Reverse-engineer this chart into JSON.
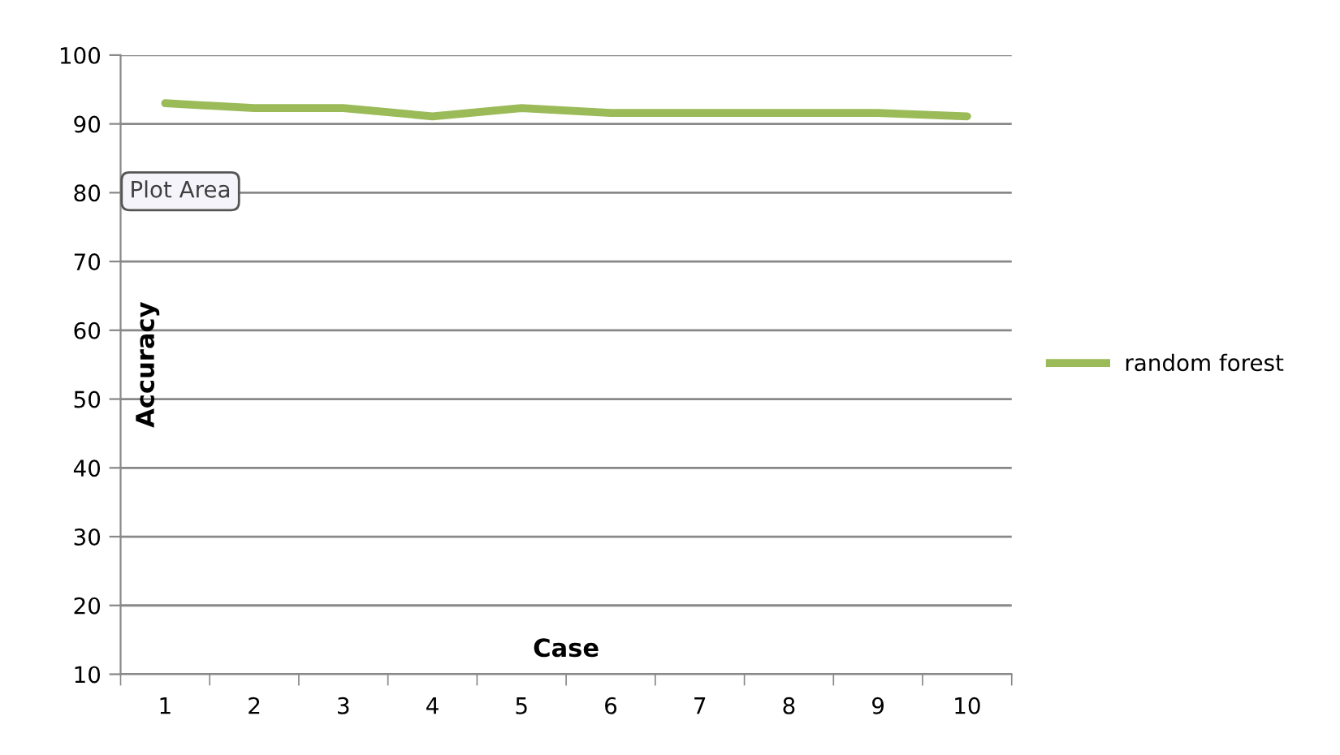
{
  "chart_data": {
    "type": "line",
    "xlabel": "Case",
    "ylabel": "Accuracy",
    "categories": [
      "1",
      "2",
      "3",
      "4",
      "5",
      "6",
      "7",
      "8",
      "9",
      "10"
    ],
    "series": [
      {
        "name": "random forest",
        "color": "#9bbb59",
        "values": [
          93,
          92.3,
          92.3,
          91.1,
          92.3,
          91.6,
          91.6,
          91.6,
          91.6,
          91.1
        ]
      }
    ],
    "ylim": [
      10,
      100
    ],
    "yticks": [
      10,
      20,
      30,
      40,
      50,
      60,
      70,
      80,
      90,
      100
    ],
    "grid": "y",
    "legend": "right",
    "marker": "none",
    "line_style": "solid",
    "annotations": [
      "Plot Area"
    ]
  }
}
